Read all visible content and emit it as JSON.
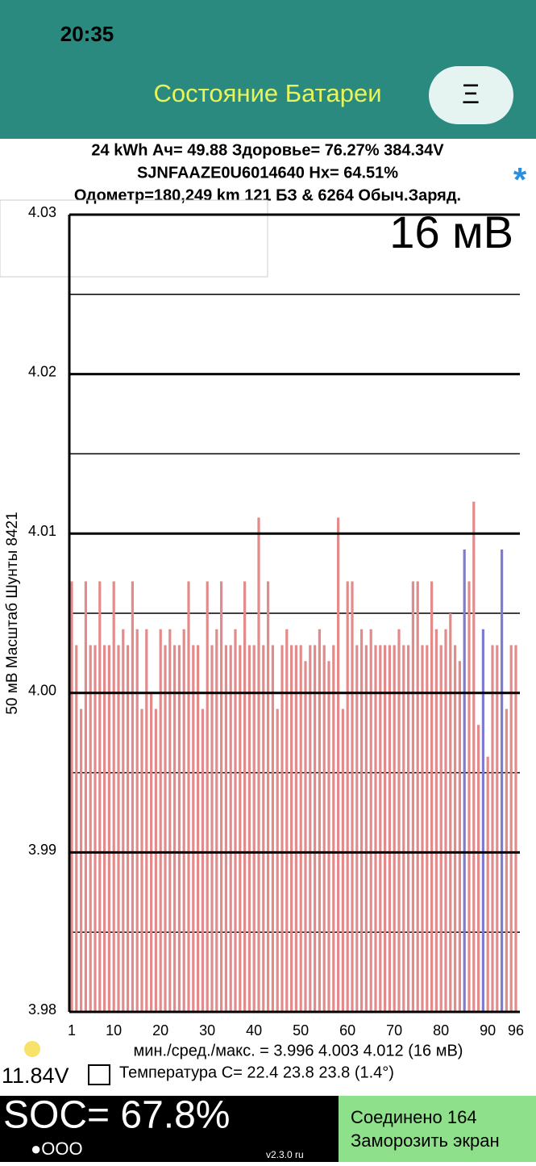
{
  "status": {
    "time": "20:35"
  },
  "app": {
    "title": "Состояние Батареи",
    "menu": "Ξ"
  },
  "header": {
    "line1": "24 kWh  Ач= 49.88  Здоровье= 76.27%   384.34V",
    "line2": "SJNFAAZE0U6014640   Hx= 64.51%",
    "line3": "Одометр=180,249 km 121 БЗ & 6264 Обыч.Заряд.",
    "star": "*"
  },
  "chart_data": {
    "type": "bar",
    "scale_label": "16 мВ",
    "y_label": "50 мВ Масштаб   Шунты 8421",
    "x": [
      1,
      2,
      3,
      4,
      5,
      6,
      7,
      8,
      9,
      10,
      11,
      12,
      13,
      14,
      15,
      16,
      17,
      18,
      19,
      20,
      21,
      22,
      23,
      24,
      25,
      26,
      27,
      28,
      29,
      30,
      31,
      32,
      33,
      34,
      35,
      36,
      37,
      38,
      39,
      40,
      41,
      42,
      43,
      44,
      45,
      46,
      47,
      48,
      49,
      50,
      51,
      52,
      53,
      54,
      55,
      56,
      57,
      58,
      59,
      60,
      61,
      62,
      63,
      64,
      65,
      66,
      67,
      68,
      69,
      70,
      71,
      72,
      73,
      74,
      75,
      76,
      77,
      78,
      79,
      80,
      81,
      82,
      83,
      84,
      85,
      86,
      87,
      88,
      89,
      90,
      91,
      92,
      93,
      94,
      95,
      96
    ],
    "values": [
      4.007,
      4.003,
      3.999,
      4.007,
      4.003,
      4.003,
      4.007,
      4.003,
      4.003,
      4.007,
      4.003,
      4.004,
      4.003,
      4.007,
      4.004,
      3.999,
      4.004,
      4.0,
      3.999,
      4.004,
      4.003,
      4.004,
      4.003,
      4.003,
      4.004,
      4.007,
      4.003,
      4.003,
      3.999,
      4.007,
      4.003,
      4.004,
      4.007,
      4.003,
      4.003,
      4.004,
      4.003,
      4.007,
      4.003,
      4.003,
      4.011,
      4.003,
      4.007,
      4.003,
      3.999,
      4.003,
      4.004,
      4.003,
      4.003,
      4.003,
      4.002,
      4.003,
      4.003,
      4.004,
      4.003,
      4.002,
      4.003,
      4.011,
      3.999,
      4.007,
      4.007,
      4.003,
      4.004,
      4.003,
      4.004,
      4.003,
      4.003,
      4.003,
      4.003,
      4.003,
      4.004,
      4.003,
      4.003,
      4.007,
      4.007,
      4.003,
      4.003,
      4.007,
      4.004,
      4.003,
      4.004,
      4.005,
      4.003,
      4.002,
      4.009,
      4.007,
      4.012,
      3.998,
      4.004,
      3.996,
      4.003,
      4.003,
      4.009,
      3.999,
      4.003,
      4.003
    ],
    "color": "#e38a8a",
    "highlight_color": "#7c7cd2",
    "highlighted": [
      85,
      89,
      93
    ],
    "xlim": [
      1,
      96
    ],
    "xticks": [
      1,
      10,
      20,
      30,
      40,
      50,
      60,
      70,
      80,
      90,
      96
    ],
    "ylim": [
      3.98,
      4.03
    ],
    "yticks": [
      4.03,
      4.02,
      4.01,
      {
        "value": 4,
        "label": "4.00"
      },
      3.99,
      3.98
    ],
    "minor_yticks": [
      4.025,
      4.015,
      4.005,
      3.995,
      3.985
    ],
    "stats": "мин./сред./макс. = 3.996 4.003 4.012  (16 мВ)"
  },
  "info": {
    "voltage": "11.84V",
    "temperature": "Температура C= 22.4  23.8  23.8  (1.4°)"
  },
  "footer": {
    "soc": "SOC= 67.8%",
    "dots": "●OOO",
    "version": "v2.3.0 ru",
    "connected": "Соединено 164",
    "freeze": "Заморозить экран"
  }
}
